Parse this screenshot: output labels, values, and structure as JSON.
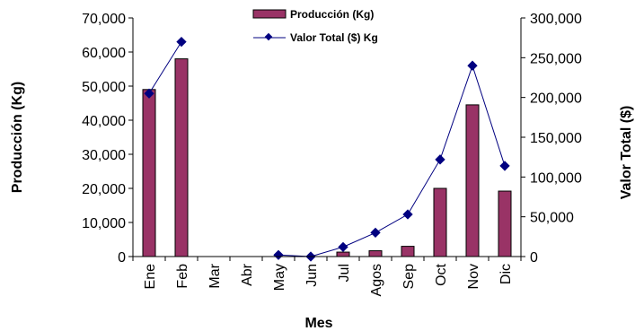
{
  "chart_data": {
    "type": "bar",
    "categories": [
      "Ene",
      "Feb",
      "Mar",
      "Abr",
      "May",
      "Jun",
      "Jul",
      "Agos",
      "Sep",
      "Oct",
      "Nov",
      "Dic"
    ],
    "series": [
      {
        "name": "Producción (Kg)",
        "type": "bar",
        "axis": "left",
        "color": "#993366",
        "values": [
          49000,
          58000,
          0,
          0,
          0,
          0,
          1300,
          1700,
          3000,
          20000,
          44500,
          19200
        ]
      },
      {
        "name": "Valor Total ($) Kg",
        "type": "line",
        "axis": "right",
        "color": "#000080",
        "values": [
          205000,
          270000,
          null,
          null,
          2000,
          0,
          12000,
          30000,
          53000,
          122000,
          240000,
          114000
        ]
      }
    ],
    "xlabel": "Mes",
    "ylabel": "Producción (Kg)",
    "y2label": "Valor Total ($)",
    "ylim": [
      0,
      70000
    ],
    "y2lim": [
      0,
      300000
    ],
    "yticks": [
      "0",
      "10,000",
      "20,000",
      "30,000",
      "40,000",
      "50,000",
      "60,000",
      "70,000"
    ],
    "y2ticks": [
      "0",
      "50,000",
      "100,000",
      "150,000",
      "200,000",
      "250,000",
      "300,000"
    ],
    "grid": false,
    "legend_position": "top-center"
  }
}
